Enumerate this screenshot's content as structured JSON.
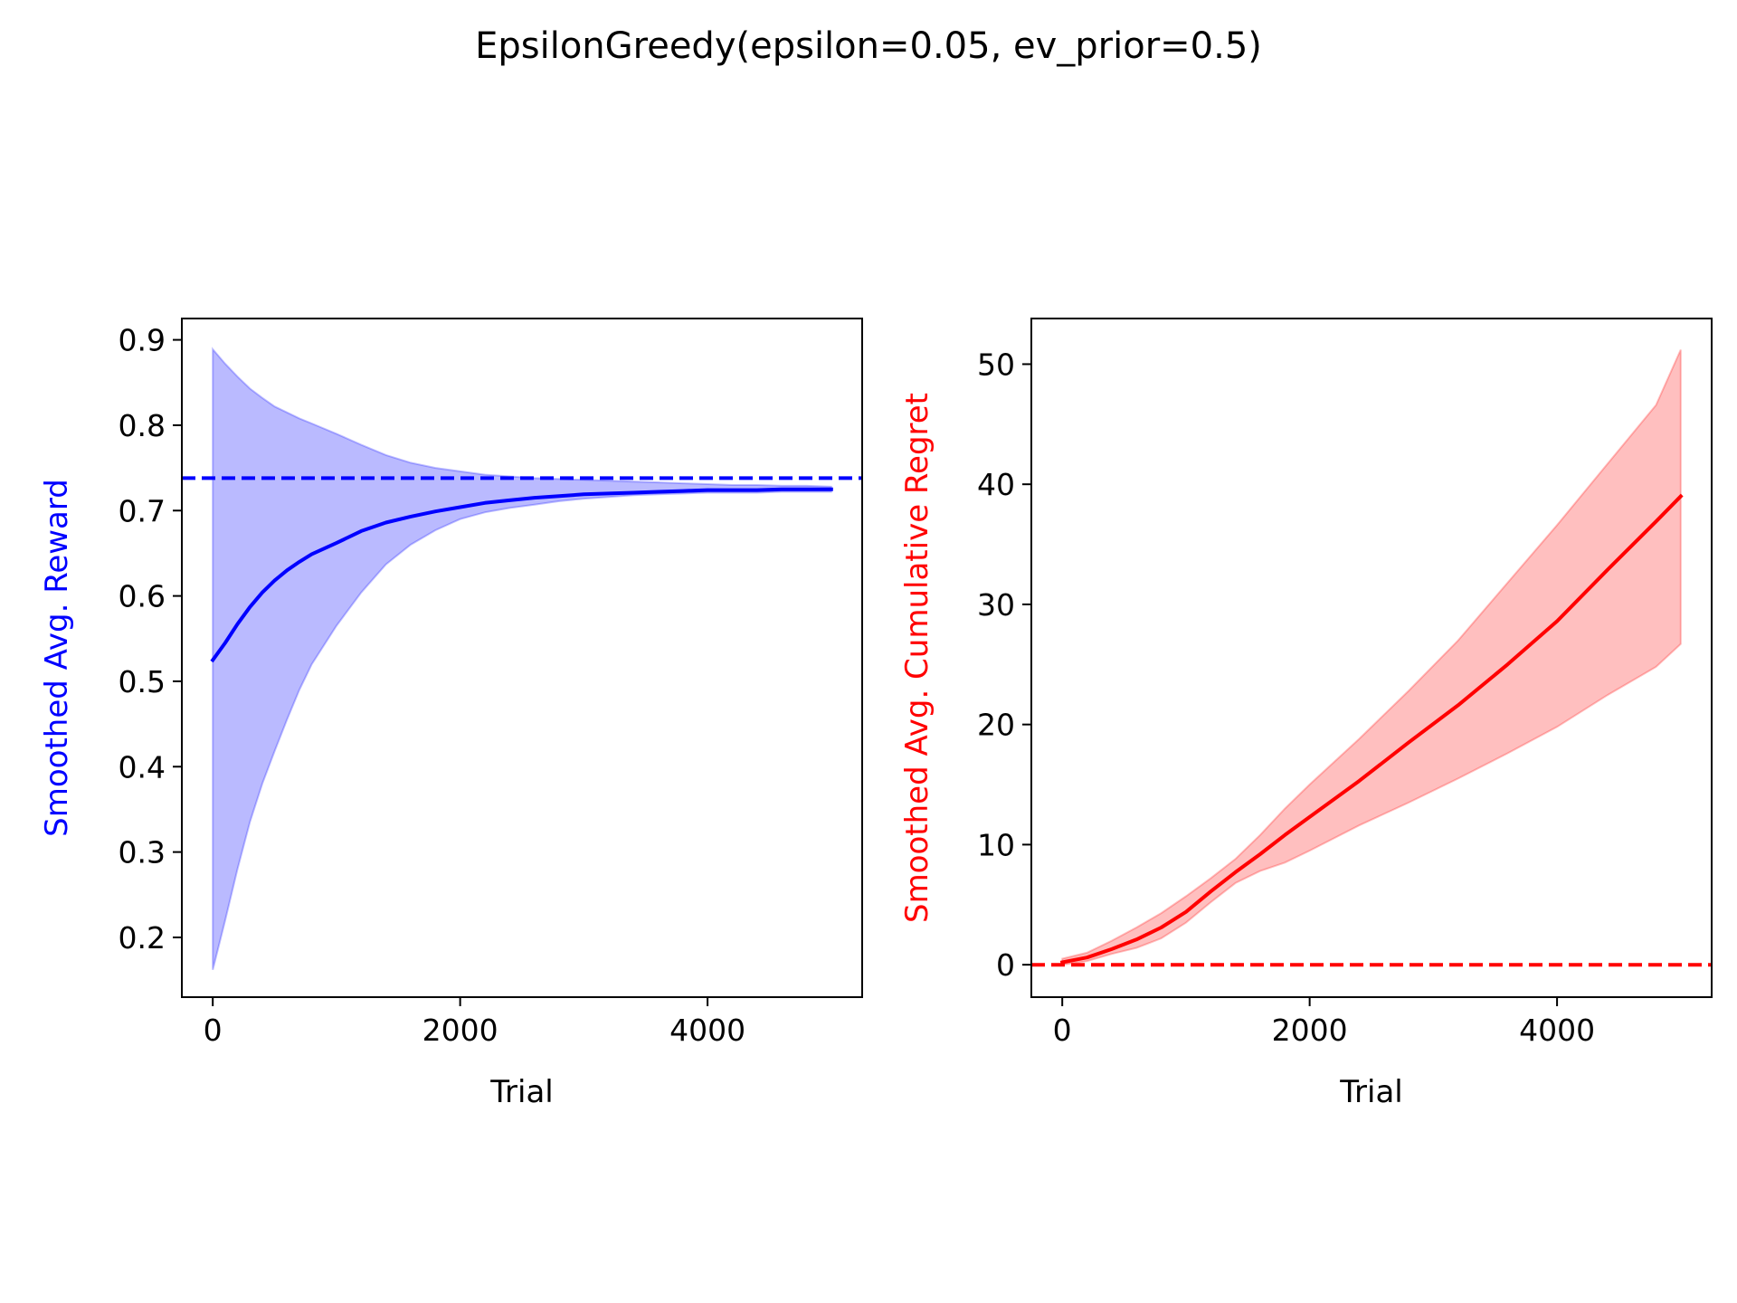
{
  "figure": {
    "title": "EpsilonGreedy(epsilon=0.05, ev_prior=0.5)"
  },
  "chart_data": [
    {
      "type": "line",
      "xlabel": "Trial",
      "ylabel": "Smoothed Avg. Reward",
      "ylabel_color": "#0000ff",
      "xlim": [
        -250,
        5250
      ],
      "ylim": [
        0.13,
        0.925
      ],
      "xticks": [
        0,
        2000,
        4000
      ],
      "xtick_labels": [
        "0",
        "2000",
        "4000"
      ],
      "yticks": [
        0.2,
        0.3,
        0.4,
        0.5,
        0.6,
        0.7,
        0.8,
        0.9
      ],
      "ytick_labels": [
        "0.2",
        "0.3",
        "0.4",
        "0.5",
        "0.6",
        "0.7",
        "0.8",
        "0.9"
      ],
      "grid": false,
      "series": [
        {
          "kind": "band",
          "color": "#0000ff",
          "opacity": 0.27,
          "x": [
            0,
            100,
            200,
            300,
            400,
            500,
            600,
            700,
            800,
            1000,
            1200,
            1400,
            1600,
            1800,
            2000,
            2200,
            2400,
            2600,
            2800,
            3000,
            3200,
            3400,
            3600,
            3800,
            4000,
            4200,
            4400,
            4600,
            4800,
            5000
          ],
          "upper": [
            0.889,
            0.872,
            0.857,
            0.843,
            0.832,
            0.822,
            0.815,
            0.808,
            0.802,
            0.79,
            0.777,
            0.765,
            0.756,
            0.75,
            0.746,
            0.742,
            0.74,
            0.738,
            0.737,
            0.736,
            0.735,
            0.734,
            0.733,
            0.732,
            0.731,
            0.73,
            0.73,
            0.729,
            0.729,
            0.728
          ],
          "lower": [
            0.162,
            0.22,
            0.28,
            0.335,
            0.38,
            0.418,
            0.455,
            0.49,
            0.52,
            0.565,
            0.604,
            0.637,
            0.66,
            0.677,
            0.69,
            0.698,
            0.703,
            0.707,
            0.711,
            0.714,
            0.716,
            0.718,
            0.719,
            0.72,
            0.721,
            0.721,
            0.721,
            0.722,
            0.722,
            0.722
          ]
        },
        {
          "kind": "line",
          "color": "#0000ff",
          "x": [
            0,
            100,
            200,
            300,
            400,
            500,
            600,
            700,
            800,
            1000,
            1200,
            1400,
            1600,
            1800,
            2000,
            2200,
            2400,
            2600,
            2800,
            3000,
            3200,
            3400,
            3600,
            3800,
            4000,
            4200,
            4400,
            4600,
            4800,
            5000
          ],
          "y": [
            0.525,
            0.545,
            0.567,
            0.587,
            0.604,
            0.618,
            0.63,
            0.64,
            0.649,
            0.662,
            0.676,
            0.686,
            0.693,
            0.699,
            0.704,
            0.709,
            0.712,
            0.715,
            0.717,
            0.719,
            0.72,
            0.721,
            0.722,
            0.723,
            0.724,
            0.724,
            0.724,
            0.725,
            0.725,
            0.725
          ]
        },
        {
          "kind": "hline",
          "style": "dashed",
          "color": "#0000ff",
          "y": 0.738
        }
      ]
    },
    {
      "type": "line",
      "xlabel": "Trial",
      "ylabel": "Smoothed Avg. Cumulative Regret",
      "ylabel_color": "#ff0000",
      "xlim": [
        -250,
        5250
      ],
      "ylim": [
        -2.7,
        53.8
      ],
      "xticks": [
        0,
        2000,
        4000
      ],
      "xtick_labels": [
        "0",
        "2000",
        "4000"
      ],
      "yticks": [
        0,
        10,
        20,
        30,
        40,
        50
      ],
      "ytick_labels": [
        "0",
        "10",
        "20",
        "30",
        "40",
        "50"
      ],
      "grid": false,
      "series": [
        {
          "kind": "band",
          "color": "#ff0000",
          "opacity": 0.25,
          "x": [
            0,
            200,
            400,
            600,
            800,
            1000,
            1200,
            1400,
            1600,
            1800,
            2000,
            2400,
            2800,
            3200,
            3600,
            4000,
            4400,
            4800,
            5000
          ],
          "upper": [
            0.5,
            1.0,
            2.0,
            3.1,
            4.3,
            5.7,
            7.2,
            8.8,
            10.8,
            13.0,
            15.0,
            18.8,
            22.8,
            27.0,
            31.8,
            36.6,
            41.6,
            46.6,
            51.2
          ],
          "lower": [
            0.0,
            0.3,
            0.9,
            1.4,
            2.2,
            3.5,
            5.2,
            6.8,
            7.8,
            8.5,
            9.5,
            11.6,
            13.5,
            15.5,
            17.6,
            19.8,
            22.4,
            24.8,
            26.7
          ]
        },
        {
          "kind": "line",
          "color": "#ff0000",
          "x": [
            0,
            200,
            400,
            600,
            800,
            1000,
            1200,
            1400,
            1600,
            1800,
            2000,
            2400,
            2800,
            3200,
            3600,
            4000,
            4400,
            4800,
            5000
          ],
          "y": [
            0.2,
            0.6,
            1.3,
            2.1,
            3.1,
            4.4,
            6.1,
            7.7,
            9.2,
            10.8,
            12.3,
            15.3,
            18.5,
            21.6,
            25.0,
            28.6,
            32.8,
            36.9,
            39.0
          ]
        },
        {
          "kind": "hline",
          "style": "dashed",
          "color": "#ff0000",
          "y": 0
        }
      ]
    }
  ]
}
